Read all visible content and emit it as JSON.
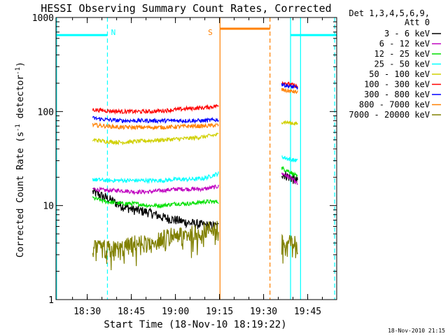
{
  "chart_data": {
    "type": "line",
    "title": "HESSI Observing Summary Count Rates, Corrected",
    "xlabel": "Start Time (18-Nov-10 18:19:22)",
    "ylabel_main": "Corrected Count Rate (s",
    "ylabel_sup1": "-1",
    "ylabel_mid": " detector",
    "ylabel_sup2": "-1",
    "ylabel_end": ")",
    "y_scale": "log",
    "ylim": [
      1,
      1000
    ],
    "xlim_minutes": [
      0,
      95.5
    ],
    "x_origin": "18:19:22",
    "x_ticks": [
      {
        "label": "18:30",
        "min": 10.63
      },
      {
        "label": "18:45",
        "min": 25.63
      },
      {
        "label": "19:00",
        "min": 40.63
      },
      {
        "label": "19:15",
        "min": 55.63
      },
      {
        "label": "19:30",
        "min": 70.63
      },
      {
        "label": "19:45",
        "min": 85.63
      }
    ],
    "y_ticks": [
      {
        "label": "1",
        "value": 1
      },
      {
        "label": "10",
        "value": 10
      },
      {
        "label": "100",
        "value": 100
      },
      {
        "label": "1000",
        "value": 1000
      }
    ],
    "legend": {
      "placement": "right",
      "header_lines": [
        "Det 1,3,4,5,6,9,",
        "Att 0"
      ]
    },
    "series": [
      {
        "name": "3 - 6 keV",
        "color": "#000000",
        "values1": [
          14,
          12,
          10,
          9,
          8.5,
          7.5,
          7,
          6.5,
          6.2,
          6
        ],
        "values2": [
          22,
          20,
          18
        ]
      },
      {
        "name": "6 - 12 keV",
        "color": "#c000c0",
        "values1": [
          15,
          14.5,
          14.5,
          14,
          14,
          14.5,
          15,
          15,
          15,
          16
        ],
        "values2": [
          22,
          20,
          17
        ]
      },
      {
        "name": "12 - 25 keV",
        "color": "#00e000",
        "values1": [
          12,
          11,
          10.5,
          10.5,
          10,
          10,
          10.5,
          10.5,
          11,
          11
        ],
        "values2": [
          25,
          23,
          20
        ]
      },
      {
        "name": "25 - 50 keV",
        "color": "#00ffff",
        "values1": [
          19,
          18.5,
          18.5,
          18.5,
          18.5,
          18.5,
          19,
          19,
          19.5,
          22
        ],
        "values2": [
          33,
          31,
          30
        ]
      },
      {
        "name": "50 - 100 keV",
        "color": "#d0d000",
        "values1": [
          50,
          48,
          47,
          48,
          49,
          50,
          51,
          52,
          54,
          57
        ],
        "values2": [
          78,
          76,
          74
        ]
      },
      {
        "name": "100 - 300 keV",
        "color": "#ff0000",
        "values1": [
          105,
          102,
          100,
          100,
          100,
          102,
          105,
          108,
          110,
          115
        ],
        "values2": [
          205,
          195,
          185
        ]
      },
      {
        "name": "300 - 800 keV",
        "color": "#0000ff",
        "values1": [
          85,
          82,
          80,
          80,
          80,
          80,
          80,
          80,
          80,
          82
        ],
        "values2": [
          195,
          185,
          180
        ]
      },
      {
        "name": "800 - 7000 keV",
        "color": "#ff8000",
        "values1": [
          72,
          70,
          68,
          68,
          68,
          68,
          69,
          70,
          70,
          72
        ],
        "values2": [
          170,
          165,
          160
        ]
      },
      {
        "name": "7000 - 20000 keV",
        "color": "#808000",
        "values1": [
          3.5,
          3.5,
          3.5,
          4,
          4,
          4.5,
          5,
          5,
          5.5,
          6
        ],
        "values2": [
          4,
          4,
          4
        ]
      }
    ],
    "segments": [
      {
        "start": 12.5,
        "end": 55.3
      },
      {
        "start": 76.8,
        "end": 82.2
      }
    ],
    "annotations": [
      {
        "label": "N",
        "bar_from": 0,
        "bar_to": 17.5,
        "bar_y": 650,
        "color": "#00ffff",
        "text_min": 19.5
      },
      {
        "label": "S",
        "bar_from": 55.8,
        "bar_to": 72.8,
        "bar_y": 760,
        "color": "#ff8000",
        "text_min": 52.5
      },
      {
        "label": "",
        "bar_from": 79.8,
        "bar_to": 95.5,
        "bar_y": 650,
        "color": "#00ffff",
        "text_min": 0
      }
    ],
    "vlines": [
      {
        "min": 0.2,
        "color": "#00ffff",
        "dashed": false
      },
      {
        "min": 17.5,
        "color": "#00ffff",
        "dashed": true
      },
      {
        "min": 55.8,
        "color": "#ff8000",
        "dashed": false
      },
      {
        "min": 72.8,
        "color": "#ff8000",
        "dashed": true
      },
      {
        "min": 79.8,
        "color": "#00ffff",
        "dashed": false
      },
      {
        "min": 83.2,
        "color": "#00ffff",
        "dashed": false
      },
      {
        "min": 94.8,
        "color": "#00ffff",
        "dashed": true
      }
    ],
    "footer": "18-Nov-2010 21:15"
  }
}
